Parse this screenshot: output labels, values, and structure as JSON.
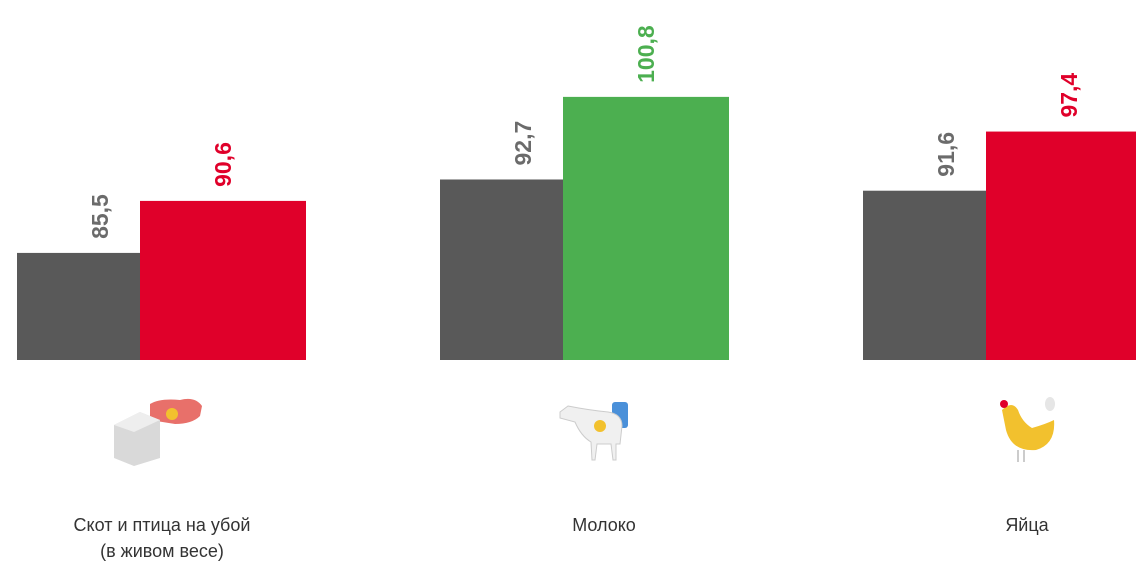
{
  "chart_data": {
    "type": "bar",
    "categories": [
      "Скот и птица на убой\n(в живом весе)",
      "Молоко",
      "Яйца"
    ],
    "series": [
      {
        "color": "#595959",
        "label_color": "#6b6b6b",
        "values": [
          85.5,
          92.7,
          91.6
        ],
        "value_labels": [
          "85,5",
          "92,7",
          "91,6"
        ]
      },
      {
        "colors": [
          "#e0002a",
          "#4caf50",
          "#e0002a"
        ],
        "values": [
          90.6,
          100.8,
          97.4
        ],
        "value_labels": [
          "90,6",
          "100,8",
          "97,4"
        ]
      }
    ],
    "ylim": [
      75,
      110.3
    ]
  }
}
